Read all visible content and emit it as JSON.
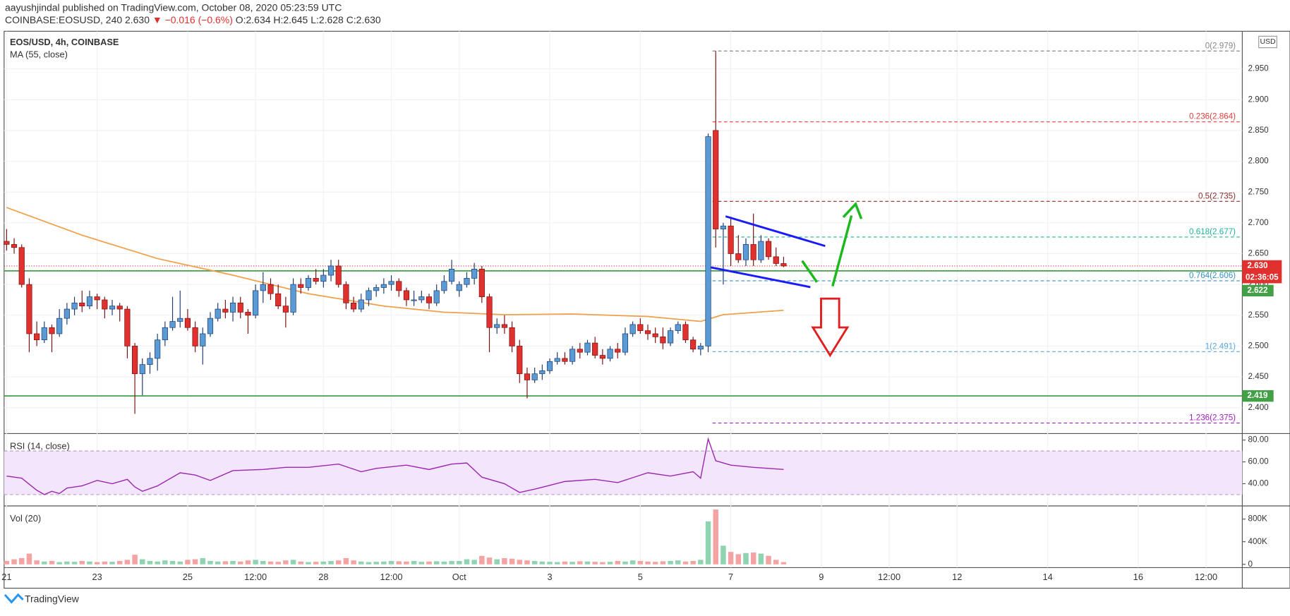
{
  "header": {
    "author_line": "aayushjindal published on TradingView.com, October 08, 2020 05:23:59 UTC",
    "symbol": "COINBASE:EOSUSD, 240",
    "last": "2.630",
    "change": "▼ −0.016 (−0.6%)",
    "o": "O:2.634",
    "h": "H:2.645",
    "l": "L:2.628",
    "c": "C:2.630"
  },
  "footer": {
    "brand": "TradingView"
  },
  "chart_data": {
    "type": "candlestick",
    "title": "EOS/USD, 4h, COINBASE",
    "currency": "USD",
    "up_color": "#5b9bd5",
    "down_color": "#e0312e",
    "xlim": [
      -0.33,
      163.8
    ],
    "xticks": [
      {
        "value": 0,
        "label": "21"
      },
      {
        "value": 12,
        "label": "23"
      },
      {
        "value": 24,
        "label": "25"
      },
      {
        "value": 33,
        "label": "12:00"
      },
      {
        "value": 42,
        "label": "28"
      },
      {
        "value": 51,
        "label": "12:00"
      },
      {
        "value": 60,
        "label": "Oct"
      },
      {
        "value": 72,
        "label": "3"
      },
      {
        "value": 84,
        "label": "5"
      },
      {
        "value": 96,
        "label": "7"
      },
      {
        "value": 108,
        "label": "9"
      },
      {
        "value": 117,
        "label": "12:00"
      },
      {
        "value": 126,
        "label": "12"
      },
      {
        "value": 138,
        "label": "14"
      },
      {
        "value": 150,
        "label": "16"
      },
      {
        "value": 159,
        "label": "12:00"
      }
    ],
    "ylim": [
      2.358,
      3.011
    ],
    "yticks": [
      {
        "value": 2.4,
        "label": "2.400"
      },
      {
        "value": 2.45,
        "label": "2.450"
      },
      {
        "value": 2.5,
        "label": "2.500"
      },
      {
        "value": 2.55,
        "label": "2.550"
      },
      {
        "value": 2.6,
        "label": "2.600"
      },
      {
        "value": 2.65,
        "label": "2.650"
      },
      {
        "value": 2.7,
        "label": "2.700"
      },
      {
        "value": 2.75,
        "label": "2.750"
      },
      {
        "value": 2.8,
        "label": "2.800"
      },
      {
        "value": 2.85,
        "label": "2.850"
      },
      {
        "value": 2.9,
        "label": "2.900"
      },
      {
        "value": 2.95,
        "label": "2.950"
      }
    ],
    "candles": [
      [
        2.67,
        2.69,
        2.655,
        2.665
      ],
      [
        2.665,
        2.675,
        2.65,
        2.66
      ],
      [
        2.66,
        2.665,
        2.595,
        2.6
      ],
      [
        2.6,
        2.61,
        2.49,
        2.52
      ],
      [
        2.52,
        2.54,
        2.5,
        2.51
      ],
      [
        2.51,
        2.54,
        2.505,
        2.53
      ],
      [
        2.53,
        2.535,
        2.49,
        2.52
      ],
      [
        2.52,
        2.56,
        2.515,
        2.545
      ],
      [
        2.545,
        2.57,
        2.535,
        2.56
      ],
      [
        2.56,
        2.58,
        2.55,
        2.57
      ],
      [
        2.57,
        2.59,
        2.555,
        2.565
      ],
      [
        2.565,
        2.59,
        2.56,
        2.58
      ],
      [
        2.58,
        2.585,
        2.56,
        2.575
      ],
      [
        2.575,
        2.58,
        2.545,
        2.56
      ],
      [
        2.56,
        2.575,
        2.55,
        2.565
      ],
      [
        2.565,
        2.57,
        2.54,
        2.56
      ],
      [
        2.56,
        2.565,
        2.48,
        2.5
      ],
      [
        2.5,
        2.505,
        2.39,
        2.455
      ],
      [
        2.455,
        2.48,
        2.42,
        2.47
      ],
      [
        2.47,
        2.49,
        2.455,
        2.48
      ],
      [
        2.48,
        2.52,
        2.46,
        2.51
      ],
      [
        2.51,
        2.54,
        2.5,
        2.53
      ],
      [
        2.53,
        2.58,
        2.525,
        2.54
      ],
      [
        2.54,
        2.59,
        2.53,
        2.545
      ],
      [
        2.545,
        2.56,
        2.525,
        2.53
      ],
      [
        2.53,
        2.54,
        2.49,
        2.5
      ],
      [
        2.5,
        2.53,
        2.47,
        2.52
      ],
      [
        2.52,
        2.555,
        2.515,
        2.545
      ],
      [
        2.545,
        2.57,
        2.54,
        2.56
      ],
      [
        2.56,
        2.575,
        2.545,
        2.555
      ],
      [
        2.555,
        2.58,
        2.54,
        2.57
      ],
      [
        2.57,
        2.58,
        2.545,
        2.555
      ],
      [
        2.555,
        2.56,
        2.52,
        2.55
      ],
      [
        2.55,
        2.6,
        2.545,
        2.59
      ],
      [
        2.59,
        2.62,
        2.57,
        2.6
      ],
      [
        2.6,
        2.61,
        2.575,
        2.585
      ],
      [
        2.585,
        2.6,
        2.56,
        2.565
      ],
      [
        2.565,
        2.58,
        2.53,
        2.555
      ],
      [
        2.555,
        2.61,
        2.55,
        2.6
      ],
      [
        2.6,
        2.61,
        2.585,
        2.595
      ],
      [
        2.595,
        2.615,
        2.59,
        2.61
      ],
      [
        2.61,
        2.625,
        2.6,
        2.605
      ],
      [
        2.605,
        2.625,
        2.595,
        2.615
      ],
      [
        2.615,
        2.64,
        2.605,
        2.63
      ],
      [
        2.63,
        2.64,
        2.595,
        2.6
      ],
      [
        2.6,
        2.605,
        2.56,
        2.57
      ],
      [
        2.57,
        2.58,
        2.555,
        2.56
      ],
      [
        2.56,
        2.585,
        2.555,
        2.575
      ],
      [
        2.575,
        2.595,
        2.565,
        2.59
      ],
      [
        2.59,
        2.6,
        2.58,
        2.595
      ],
      [
        2.595,
        2.61,
        2.585,
        2.6
      ],
      [
        2.6,
        2.615,
        2.59,
        2.605
      ],
      [
        2.605,
        2.61,
        2.58,
        2.59
      ],
      [
        2.59,
        2.595,
        2.565,
        2.575
      ],
      [
        2.575,
        2.59,
        2.565,
        2.575
      ],
      [
        2.575,
        2.59,
        2.57,
        2.58
      ],
      [
        2.58,
        2.585,
        2.56,
        2.57
      ],
      [
        2.57,
        2.6,
        2.565,
        2.59
      ],
      [
        2.59,
        2.615,
        2.585,
        2.605
      ],
      [
        2.605,
        2.64,
        2.6,
        2.625
      ],
      [
        2.59,
        2.605,
        2.58,
        2.6
      ],
      [
        2.6,
        2.62,
        2.595,
        2.61
      ],
      [
        2.61,
        2.635,
        2.6,
        2.625
      ],
      [
        2.625,
        2.63,
        2.57,
        2.58
      ],
      [
        2.58,
        2.585,
        2.49,
        2.53
      ],
      [
        2.53,
        2.545,
        2.52,
        2.535
      ],
      [
        2.535,
        2.55,
        2.52,
        2.53
      ],
      [
        2.53,
        2.54,
        2.49,
        2.5
      ],
      [
        2.5,
        2.51,
        2.44,
        2.455
      ],
      [
        2.455,
        2.465,
        2.415,
        2.445
      ],
      [
        2.445,
        2.465,
        2.44,
        2.455
      ],
      [
        2.455,
        2.47,
        2.445,
        2.46
      ],
      [
        2.46,
        2.48,
        2.455,
        2.475
      ],
      [
        2.475,
        2.49,
        2.47,
        2.48
      ],
      [
        2.48,
        2.49,
        2.47,
        2.475
      ],
      [
        2.475,
        2.5,
        2.47,
        2.495
      ],
      [
        2.495,
        2.505,
        2.48,
        2.49
      ],
      [
        2.49,
        2.51,
        2.485,
        2.505
      ],
      [
        2.505,
        2.515,
        2.48,
        2.485
      ],
      [
        2.485,
        2.495,
        2.47,
        2.48
      ],
      [
        2.48,
        2.5,
        2.475,
        2.495
      ],
      [
        2.495,
        2.505,
        2.48,
        2.49
      ],
      [
        2.49,
        2.53,
        2.485,
        2.52
      ],
      [
        2.52,
        2.54,
        2.515,
        2.535
      ],
      [
        2.535,
        2.545,
        2.52,
        2.525
      ],
      [
        2.525,
        2.535,
        2.51,
        2.52
      ],
      [
        2.52,
        2.53,
        2.505,
        2.515
      ],
      [
        2.515,
        2.53,
        2.495,
        2.505
      ],
      [
        2.505,
        2.53,
        2.5,
        2.525
      ],
      [
        2.525,
        2.54,
        2.52,
        2.535
      ],
      [
        2.535,
        2.54,
        2.505,
        2.51
      ],
      [
        2.51,
        2.515,
        2.49,
        2.495
      ],
      [
        2.495,
        2.505,
        2.485,
        2.5
      ],
      [
        2.5,
        2.845,
        2.49,
        2.84
      ],
      [
        2.85,
        2.979,
        2.66,
        2.69
      ],
      [
        2.69,
        2.7,
        2.6,
        2.695
      ],
      [
        2.695,
        2.71,
        2.63,
        2.65
      ],
      [
        2.65,
        2.68,
        2.635,
        2.64
      ],
      [
        2.64,
        2.675,
        2.63,
        2.665
      ],
      [
        2.665,
        2.715,
        2.63,
        2.64
      ],
      [
        2.64,
        2.68,
        2.635,
        2.67
      ],
      [
        2.67,
        2.675,
        2.64,
        2.645
      ],
      [
        2.645,
        2.66,
        2.63,
        2.634
      ],
      [
        2.634,
        2.645,
        2.628,
        2.63
      ]
    ],
    "ma": {
      "name": "MA (55, close)",
      "color": "#f0a04b",
      "x": [
        0,
        10,
        20,
        30,
        40,
        50,
        58,
        66,
        75,
        85,
        92,
        95,
        103
      ],
      "values": [
        2.725,
        2.68,
        2.642,
        2.615,
        2.585,
        2.565,
        2.555,
        2.551,
        2.552,
        2.548,
        2.54,
        2.551,
        2.558
      ]
    },
    "fib_levels": [
      {
        "value": 2.979,
        "label": "0(2.979)",
        "color": "#888888"
      },
      {
        "value": 2.864,
        "label": "0.236(2.864)",
        "color": "#e04040"
      },
      {
        "value": 2.735,
        "label": "0.5(2.735)",
        "color": "#8a2a2a"
      },
      {
        "value": 2.677,
        "label": "0.618(2.677)",
        "color": "#22b39a"
      },
      {
        "value": 2.606,
        "label": "0.764(2.606)",
        "color": "#3a8fc4"
      },
      {
        "value": 2.491,
        "label": "1(2.491)",
        "color": "#5aa8d8"
      },
      {
        "value": 2.375,
        "label": "1.236(2.375)",
        "color": "#a020c0"
      }
    ],
    "price_lines": [
      {
        "value": 2.622,
        "label": "2.622",
        "color": "#43a047"
      },
      {
        "value": 2.419,
        "label": "2.419",
        "color": "#43a047"
      }
    ],
    "last_price": {
      "value": 2.63,
      "label": "2.630",
      "color": "#e0312e",
      "countdown": "02:36:05"
    },
    "rsi": {
      "name": "RSI (14, close)",
      "color": "#9c27b0",
      "ylim": [
        19.6,
        86
      ],
      "band": [
        30,
        70
      ],
      "yticks": [
        {
          "value": 40,
          "label": "40.00"
        },
        {
          "value": 60,
          "label": "60.00"
        },
        {
          "value": 80,
          "label": "80.00"
        }
      ],
      "x": [
        0,
        2,
        4,
        5,
        6,
        7,
        8,
        10,
        12,
        14,
        16,
        17,
        18,
        20,
        23,
        25,
        27,
        30,
        34,
        37,
        40,
        44,
        47,
        49,
        53,
        56,
        59,
        61,
        63,
        66,
        68,
        70,
        74,
        78,
        81,
        85,
        88,
        91,
        92,
        93,
        94,
        96,
        99,
        103
      ],
      "values": [
        47,
        45,
        34,
        30,
        33,
        31,
        36,
        38,
        43,
        40,
        44,
        37,
        33,
        38,
        50,
        48,
        43,
        52,
        53,
        55,
        55,
        58,
        51,
        54,
        57,
        53,
        58,
        59,
        46,
        40,
        32,
        35,
        42,
        44,
        41,
        50,
        47,
        51,
        45,
        81,
        61,
        57,
        55,
        53
      ]
    },
    "volume": {
      "name": "Vol (20)",
      "ylim": [
        -58000,
        1033000
      ],
      "yticks": [
        0,
        {
          "value": 400000,
          "label": "400K"
        },
        {
          "value": 800000,
          "label": "800K"
        }
      ],
      "values": [
        60000,
        90000,
        110000,
        190000,
        70000,
        50000,
        60000,
        40000,
        50000,
        45000,
        60000,
        50000,
        40000,
        50000,
        45000,
        60000,
        80000,
        170000,
        90000,
        60000,
        50000,
        70000,
        60000,
        50000,
        80000,
        90000,
        110000,
        60000,
        50000,
        55000,
        60000,
        50000,
        70000,
        80000,
        60000,
        50000,
        45000,
        70000,
        80000,
        50000,
        40000,
        45000,
        50000,
        60000,
        70000,
        110000,
        70000,
        50000,
        40000,
        45000,
        50000,
        60000,
        55000,
        50000,
        60000,
        45000,
        50000,
        55000,
        50000,
        60000,
        60000,
        90000,
        80000,
        150000,
        120000,
        90000,
        110000,
        100000,
        80000,
        70000,
        60000,
        50000,
        45000,
        40000,
        50000,
        45000,
        55000,
        50000,
        45000,
        40000,
        45000,
        60000,
        50000,
        70000,
        60000,
        50000,
        45000,
        55000,
        60000,
        70000,
        50000,
        60000,
        80000,
        760000,
        970000,
        330000,
        220000,
        180000,
        200000,
        210000,
        190000,
        150000,
        80000,
        40000
      ]
    }
  }
}
